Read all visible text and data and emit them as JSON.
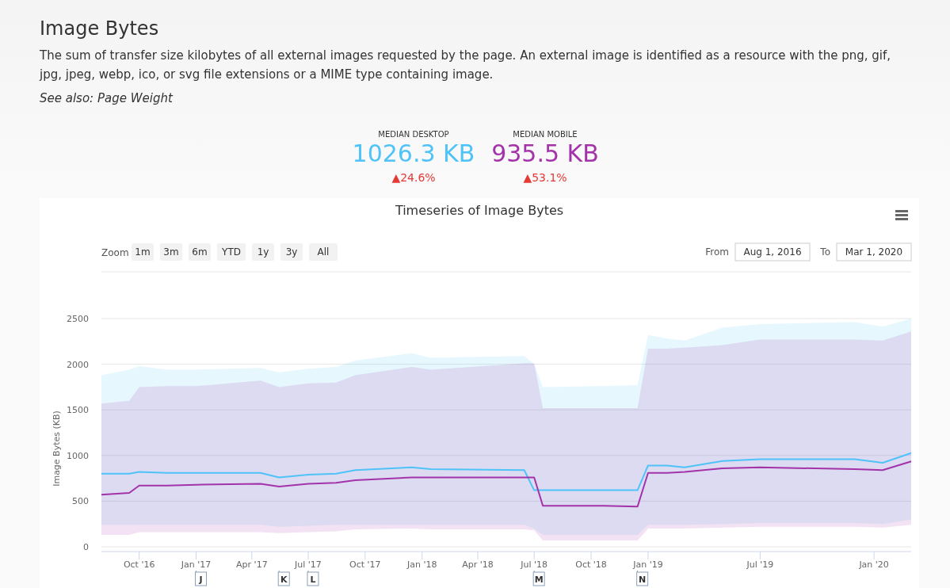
{
  "chart_data": {
    "type": "line",
    "title": "Timeseries of Image Bytes",
    "ylabel": "Image Bytes (KB)",
    "x": [
      "2016-08-01",
      "2016-09-15",
      "2016-10-01",
      "2016-11-15",
      "2017-01-01",
      "2017-04-15",
      "2017-05-15",
      "2017-07-01",
      "2017-08-15",
      "2017-09-15",
      "2017-12-15",
      "2018-01-15",
      "2018-06-15",
      "2018-07-01",
      "2018-07-15",
      "2018-10-15",
      "2018-12-15",
      "2019-01-01",
      "2019-02-01",
      "2019-03-01",
      "2019-05-01",
      "2019-07-01",
      "2019-12-01",
      "2020-01-15",
      "2020-03-01"
    ],
    "xlim": [
      "2016-08-01",
      "2020-03-01"
    ],
    "xticks": [
      {
        "value": "2016-10-01",
        "label": "Oct '16"
      },
      {
        "value": "2017-01-01",
        "label": "Jan '17"
      },
      {
        "value": "2017-04-01",
        "label": "Apr '17"
      },
      {
        "value": "2017-07-01",
        "label": "Jul '17"
      },
      {
        "value": "2017-10-01",
        "label": "Oct '17"
      },
      {
        "value": "2018-01-01",
        "label": "Jan '18"
      },
      {
        "value": "2018-04-01",
        "label": "Apr '18"
      },
      {
        "value": "2018-07-01",
        "label": "Jul '18"
      },
      {
        "value": "2018-10-01",
        "label": "Oct '18"
      },
      {
        "value": "2019-01-01",
        "label": "Jan '19"
      },
      {
        "value": "2019-07-01",
        "label": "Jul '19"
      },
      {
        "value": "2020-01-01",
        "label": "Jan '20"
      }
    ],
    "ylim": [
      0,
      2500
    ],
    "yticks": [
      0,
      500,
      1000,
      1500,
      2000,
      2500
    ],
    "grid": "y",
    "marker": "none",
    "line_style": "solid",
    "series": [
      {
        "color": "#4fc3f7",
        "values": [
          800,
          800,
          820,
          810,
          810,
          810,
          760,
          790,
          800,
          840,
          870,
          850,
          840,
          620,
          620,
          620,
          620,
          890,
          890,
          870,
          940,
          960,
          960,
          920,
          1026.3
        ],
        "lower": [
          240,
          240,
          240,
          240,
          240,
          240,
          220,
          230,
          240,
          240,
          240,
          240,
          240,
          200,
          130,
          130,
          130,
          240,
          240,
          240,
          250,
          260,
          260,
          250,
          300
        ],
        "upper": [
          1880,
          1940,
          1980,
          1940,
          1940,
          1960,
          1910,
          1950,
          1970,
          2040,
          2120,
          2070,
          2090,
          2000,
          1750,
          1760,
          1770,
          2320,
          2280,
          2260,
          2400,
          2440,
          2460,
          2410,
          2500
        ]
      },
      {
        "color": "#a333a9",
        "values": [
          570,
          590,
          670,
          670,
          680,
          690,
          660,
          690,
          700,
          730,
          760,
          760,
          760,
          760,
          450,
          450,
          440,
          810,
          810,
          820,
          860,
          870,
          850,
          840,
          935.5
        ],
        "lower": [
          130,
          130,
          160,
          160,
          160,
          160,
          150,
          160,
          170,
          190,
          200,
          190,
          190,
          180,
          70,
          70,
          70,
          200,
          200,
          200,
          210,
          220,
          220,
          210,
          240
        ],
        "upper": [
          1570,
          1600,
          1750,
          1760,
          1760,
          1820,
          1750,
          1790,
          1800,
          1880,
          1970,
          1940,
          2010,
          2010,
          1520,
          1520,
          1520,
          2170,
          2170,
          2180,
          2210,
          2270,
          2270,
          2260,
          2360
        ]
      }
    ],
    "annotations": [
      "Image Bytes",
      "The sum of transfer size kilobytes of all external images requested by the page. An external image is identified as a resource with the png, gif, jpg, jpeg, webp, ico, or svg file extensions or a MIME type containing image.",
      "See also: Page Weight",
      "MEDIAN DESKTOP",
      "1026.3 KB",
      "▲24.6%",
      "MEDIAN MOBILE",
      "935.5 KB",
      "▲53.1%",
      "Zoom",
      "1m",
      "3m",
      "6m",
      "YTD",
      "1y",
      "3y",
      "All",
      "From",
      "Aug 1, 2016",
      "To",
      "Mar 1, 2020",
      {
        "text": "J",
        "x": "2017-01-01"
      },
      {
        "text": "K",
        "x": "2017-05-15"
      },
      {
        "text": "L",
        "x": "2017-07-01"
      },
      {
        "text": "M",
        "x": "2018-07-01"
      },
      {
        "text": "N",
        "x": "2018-12-15"
      }
    ]
  }
}
